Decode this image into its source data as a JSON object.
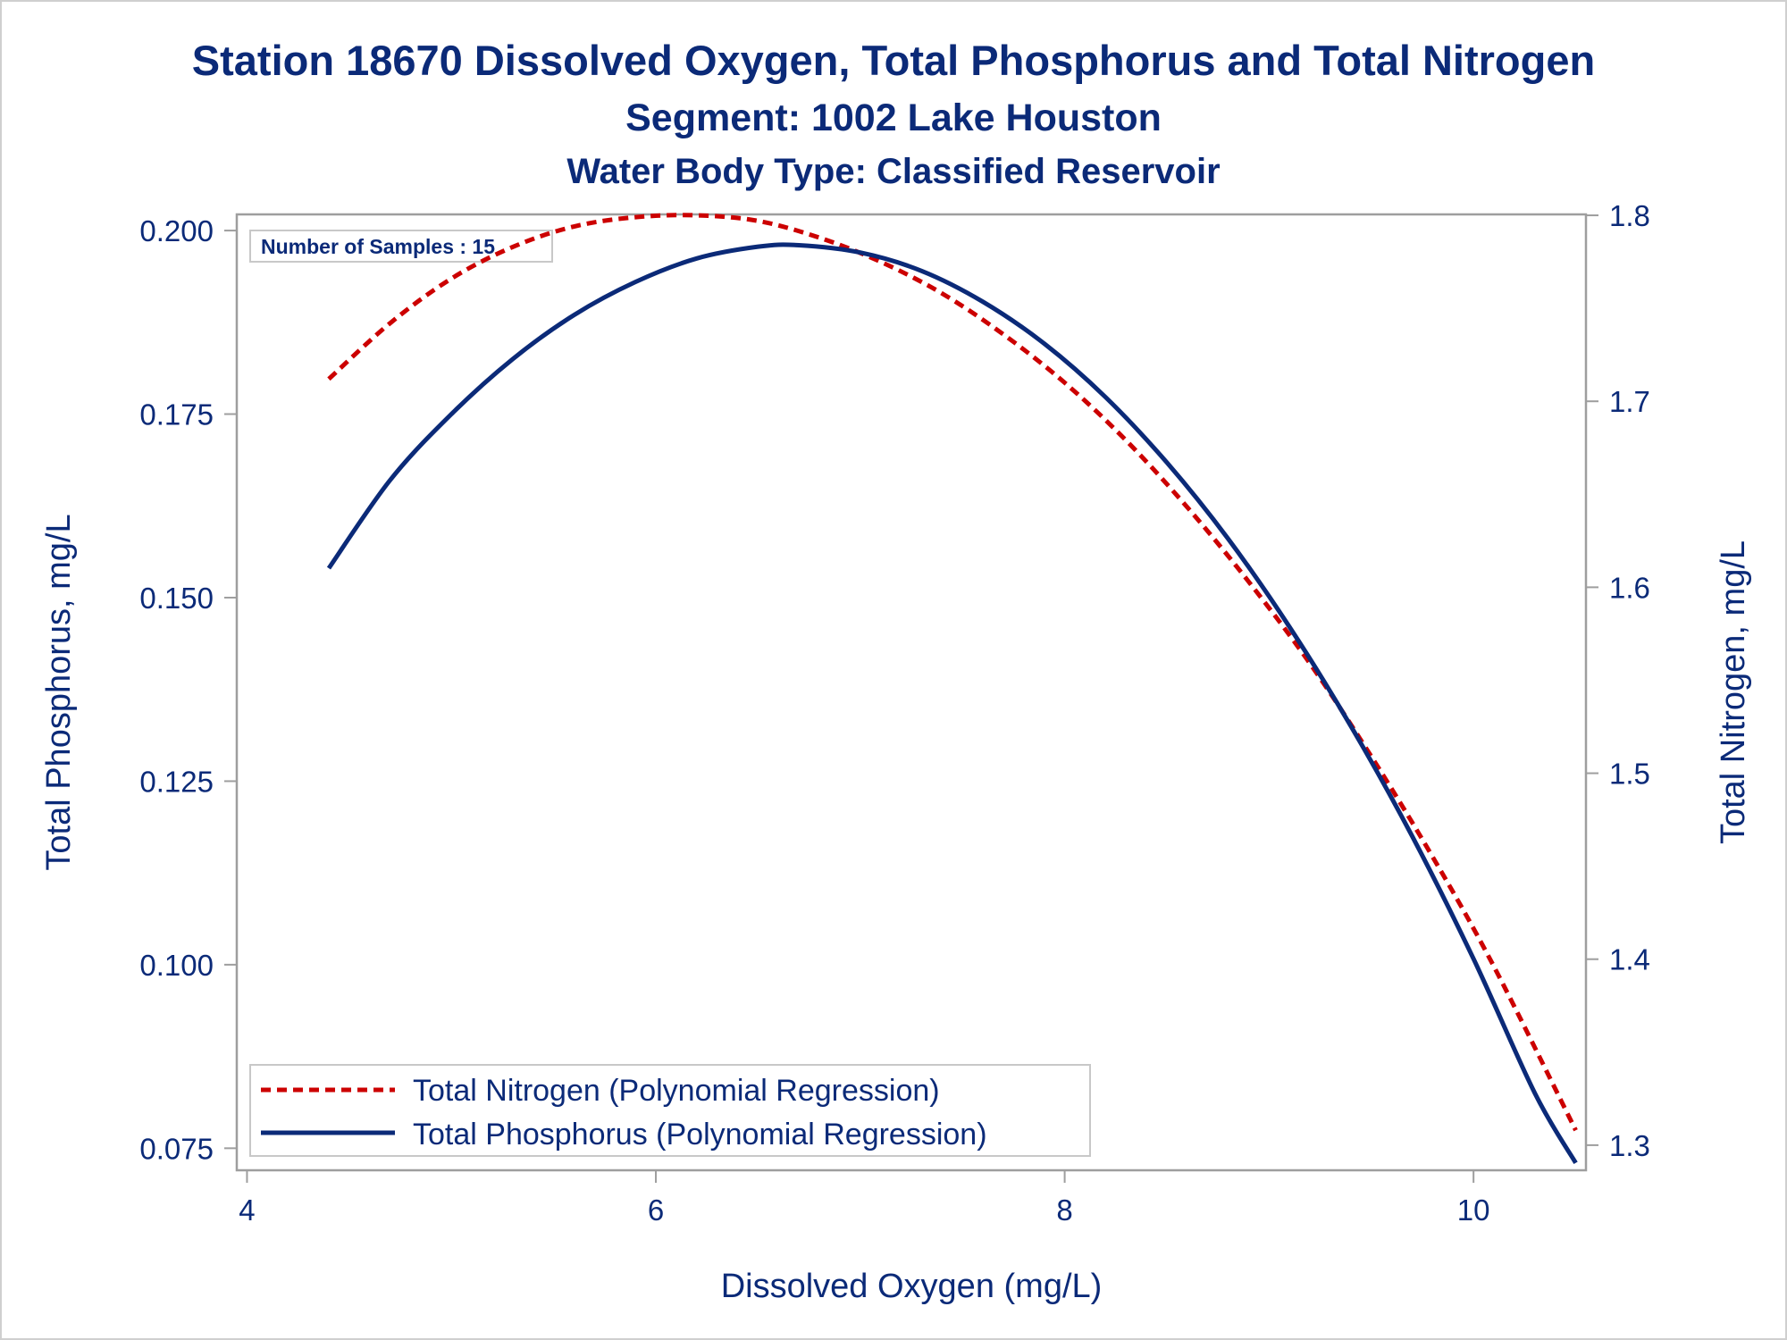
{
  "chart_data": {
    "type": "line",
    "title": "Station 18670  Dissolved Oxygen, Total Phosphorus and Total Nitrogen",
    "subtitle": "Segment: 1002  Lake Houston",
    "subtitle2": "Water Body Type: Classified Reservoir",
    "xlabel": "Dissolved Oxygen (mg/L)",
    "ylabel_left": "Total Phosphorus, mg/L",
    "ylabel_right": "Total Nitrogen, mg/L",
    "xlim": [
      3.95,
      10.55
    ],
    "ylim_left": [
      0.072,
      0.2022
    ],
    "ylim_right": [
      1.2865,
      1.8005
    ],
    "x_ticks": [
      "4",
      "6",
      "8",
      "10"
    ],
    "y_left_ticks": [
      "0.075",
      "0.100",
      "0.125",
      "0.150",
      "0.175",
      "0.200"
    ],
    "y_right_ticks": [
      "1.3",
      "1.4",
      "1.5",
      "1.6",
      "1.7",
      "1.8"
    ],
    "grid": false,
    "legend_position": "bottom-left",
    "inset_label": "Number of Samples : 15",
    "series": [
      {
        "name": "Total Nitrogen (Polynomial Regression)",
        "axis": "right",
        "style": "dashed",
        "color": "#cc0000",
        "x": [
          4.4,
          4.7,
          5.0,
          5.3,
          5.6,
          5.9,
          6.2,
          6.5,
          6.8,
          7.1,
          7.4,
          7.7,
          8.0,
          8.3,
          8.6,
          8.9,
          9.2,
          9.5,
          9.8,
          10.1,
          10.5
        ],
        "y": [
          1.712,
          1.742,
          1.766,
          1.783,
          1.794,
          1.799,
          1.8,
          1.797,
          1.788,
          1.775,
          1.758,
          1.736,
          1.71,
          1.679,
          1.643,
          1.603,
          1.559,
          1.509,
          1.455,
          1.396,
          1.308
        ]
      },
      {
        "name": "Total Phosphorus (Polynomial Regression)",
        "axis": "left",
        "style": "solid",
        "color": "#0b2a78",
        "x": [
          4.4,
          4.7,
          5.0,
          5.3,
          5.6,
          5.9,
          6.2,
          6.5,
          6.7,
          7.0,
          7.3,
          7.6,
          7.9,
          8.2,
          8.5,
          8.8,
          9.1,
          9.4,
          9.7,
          10.0,
          10.3,
          10.5
        ],
        "y": [
          0.154,
          0.166,
          0.175,
          0.1825,
          0.1885,
          0.193,
          0.1962,
          0.1978,
          0.198,
          0.197,
          0.1945,
          0.1903,
          0.1846,
          0.1773,
          0.1684,
          0.158,
          0.146,
          0.1325,
          0.1175,
          0.1008,
          0.0825,
          0.073
        ]
      }
    ]
  },
  "colors": {
    "text": "#0b2a78",
    "frame": "#9e9e9e",
    "nitrogen": "#cc0000",
    "phosphorus": "#0b2a78"
  }
}
